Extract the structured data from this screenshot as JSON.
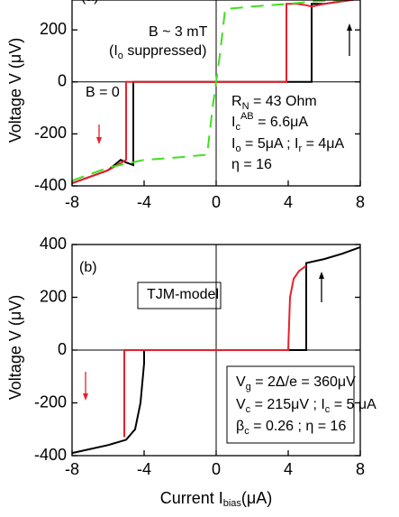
{
  "chart_data": [
    {
      "type": "line",
      "ylabel": "Voltage V (μV)",
      "xlim": [
        -8,
        8
      ],
      "xticks": [
        -8,
        -4,
        0,
        4,
        8
      ],
      "ylim": [
        -400,
        315
      ],
      "yticks": [
        -400,
        -200,
        0,
        200
      ],
      "series": [
        {
          "color": "#000000",
          "dashed": false,
          "x": [
            -8,
            -6,
            -5.3,
            -5,
            -4.6,
            -4.6,
            0,
            5.3,
            5.3,
            6,
            7,
            8
          ],
          "values": [
            -390,
            -340,
            -300,
            -310,
            -320,
            0,
            0,
            0,
            300,
            300,
            310,
            320
          ]
        },
        {
          "color": "#e8202a",
          "dashed": false,
          "x": [
            -8,
            -6,
            -5,
            -5,
            0,
            3.9,
            3.9,
            4.5,
            5,
            5.3,
            6,
            8
          ],
          "values": [
            -390,
            -340,
            -300,
            0,
            0,
            0,
            300,
            300,
            295,
            290,
            300,
            320
          ]
        },
        {
          "color": "#44dd22",
          "dashed": true,
          "x": [
            -8,
            -6,
            -4,
            -2,
            -0.5,
            -0.2,
            0.2,
            0.5,
            2,
            4,
            5.5,
            8
          ],
          "values": [
            -380,
            -330,
            -300,
            -290,
            -280,
            -100,
            100,
            280,
            290,
            300,
            310,
            320
          ]
        }
      ],
      "annotations": [
        {
          "parts": [
            {
              "text": "(a)"
            }
          ]
        },
        {
          "color": "#44dd22",
          "parts": [
            {
              "text": "B ~ 3 mT"
            }
          ]
        },
        {
          "color": "#44dd22",
          "parts": [
            {
              "text": "(I"
            },
            {
              "text": "o",
              "sub": true
            },
            {
              "text": " suppressed)"
            }
          ]
        },
        {
          "parts": [
            {
              "text": "B = 0"
            }
          ]
        },
        {
          "parts": [
            {
              "text": "R"
            },
            {
              "text": "N",
              "sub": true
            },
            {
              "text": " = 43 Ohm"
            }
          ]
        },
        {
          "parts": [
            {
              "text": "I"
            },
            {
              "text": "c",
              "sub": true
            },
            {
              "text": "AB",
              "sup": true
            },
            {
              "text": " = 6.6μA"
            }
          ]
        },
        {
          "parts": [
            {
              "text": "I"
            },
            {
              "text": "o",
              "sub": true
            },
            {
              "text": " = 5μA ; I"
            },
            {
              "text": "r",
              "sub": true
            },
            {
              "text": " = 4μA"
            }
          ]
        },
        {
          "parts": [
            {
              "text": "η  = 16"
            }
          ]
        }
      ]
    },
    {
      "type": "line",
      "ylabel": "Voltage V (μV)",
      "xlabel": [
        {
          "text": "Current  I"
        },
        {
          "text": "bias",
          "sub": true
        },
        {
          "text": "(μA)"
        }
      ],
      "xlim": [
        -8,
        8
      ],
      "xticks": [
        -8,
        -4,
        0,
        4,
        8
      ],
      "ylim": [
        -400,
        400
      ],
      "yticks": [
        -400,
        -200,
        0,
        200,
        400
      ],
      "series": [
        {
          "color": "#000000",
          "dashed": false,
          "x": [
            -8,
            -6,
            -5,
            -4.5,
            -4.2,
            -4,
            -4,
            0,
            5,
            5,
            6,
            7,
            8
          ],
          "values": [
            -390,
            -360,
            -340,
            -300,
            -200,
            -50,
            0,
            0,
            0,
            330,
            345,
            365,
            390
          ]
        },
        {
          "color": "#e8202a",
          "dashed": false,
          "x": [
            -5.1,
            -5.1,
            0,
            4,
            4.1,
            4.3,
            4.6,
            5
          ],
          "values": [
            -330,
            0,
            0,
            0,
            200,
            270,
            300,
            320
          ]
        }
      ],
      "annotations": [
        {
          "parts": [
            {
              "text": "(b)"
            }
          ]
        },
        {
          "parts": [
            {
              "text": "TJM-model"
            }
          ]
        },
        {
          "parts": [
            {
              "text": "V"
            },
            {
              "text": "g",
              "sub": true
            },
            {
              "text": " = 2Δ/e = 360μV"
            }
          ]
        },
        {
          "parts": [
            {
              "text": "V"
            },
            {
              "text": "c",
              "sub": true
            },
            {
              "text": " = 215μV ;  I"
            },
            {
              "text": "c",
              "sub": true
            },
            {
              "text": " = 5 μA"
            }
          ]
        },
        {
          "parts": [
            {
              "text": "β"
            },
            {
              "text": "c",
              "sub": true
            },
            {
              "text": " = 0.26 ;  η = 16"
            }
          ]
        }
      ]
    }
  ]
}
